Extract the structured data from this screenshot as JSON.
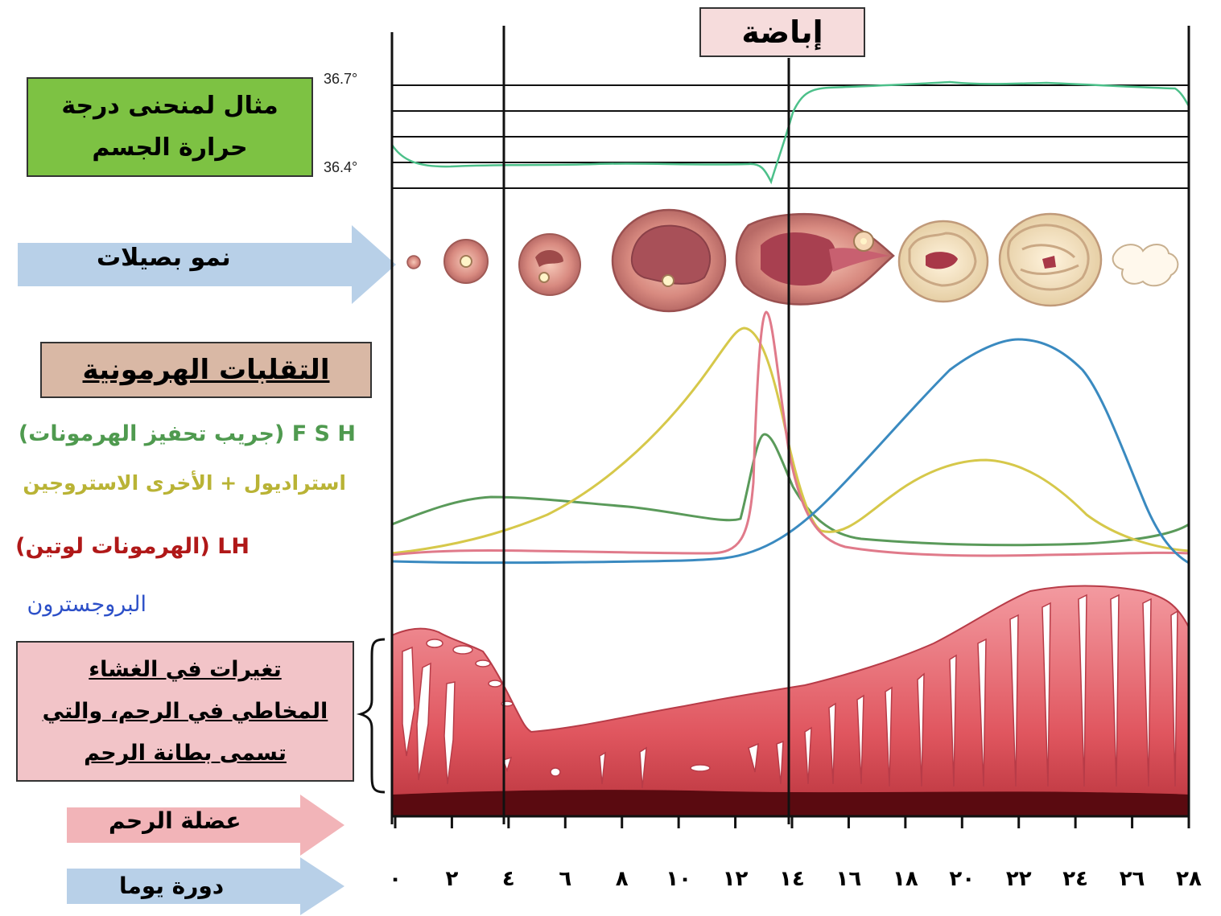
{
  "title": "إباضة",
  "temperature": {
    "box_label": "مثال لمنحنى درجة حرارة الجسم",
    "upper_label": "36.7°",
    "lower_label": "36.4°"
  },
  "follicle_label": "نمو بصيلات",
  "hormones": {
    "header": "التقلبات الهرمونية",
    "fsh": "F S H (جريب تحفيز الهرمونات)",
    "estrogen": "استراديول + الأخرى الاستروجين",
    "lh": "LH (الهرمونات لوتين)",
    "progesterone": "البروجسترون"
  },
  "endometrium_label": "تغيرات في الغشاء المخاطي في الرحم، والتي تسمى بطانة الرحم",
  "uterus_muscle_label": "عضلة الرحم",
  "cycle_label": "دورة يوما",
  "day_labels": [
    "٠",
    "٢",
    "٤",
    "٦",
    "٨",
    "١٠",
    "١٢",
    "١٤",
    "١٦",
    "١٨",
    "٢٠",
    "٢٢",
    "٢٤",
    "٢٦",
    "٢٨"
  ],
  "colors": {
    "fsh": "#5a9a5a",
    "estrogen": "#d6c84a",
    "lh": "#e07a8a",
    "progesterone": "#3a8ac0",
    "temperature": "#4cc08a",
    "temp_box": "#7dc243",
    "hormone_box": "#d9b8a5",
    "endo_box": "#f2c4c8",
    "endometrium": "#e8757a",
    "muscle": "#5a0a10"
  }
}
